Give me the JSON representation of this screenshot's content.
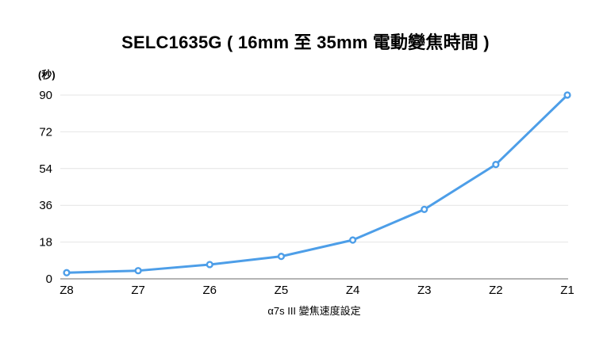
{
  "chart_data": {
    "type": "line",
    "title": "SELC1635G ( 16mm 至 35mm 電動變焦時間 )",
    "ylabel": "(秒)",
    "xlabel": "α7s III 變焦速度設定",
    "categories": [
      "Z8",
      "Z7",
      "Z6",
      "Z5",
      "Z4",
      "Z3",
      "Z2",
      "Z1"
    ],
    "series": [
      {
        "name": "電動變焦時間",
        "values": [
          3,
          4,
          7,
          11,
          19,
          34,
          56,
          90
        ]
      }
    ],
    "yticks": [
      0,
      18,
      36,
      54,
      72,
      90
    ],
    "ylim": [
      0,
      90
    ],
    "grid": true,
    "legend_visible": false,
    "colors": {
      "line": "#4d9ee8",
      "marker_fill": "#ffffff",
      "gridline": "#e4e4e4",
      "axis_line": "#9b9b9b",
      "text": "#000000",
      "background": "#ffffff"
    }
  }
}
